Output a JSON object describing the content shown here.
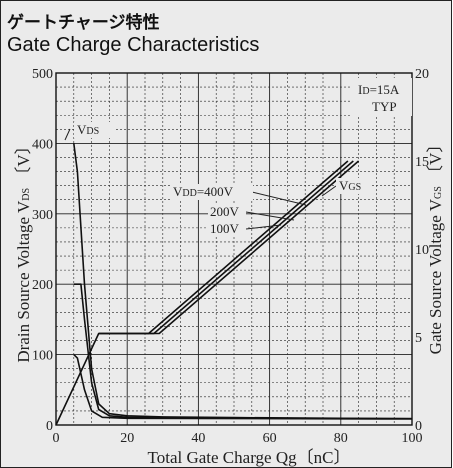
{
  "title_jp": "ゲートチャージ特性",
  "title_en": "Gate Charge Characteristics",
  "chart_data": {
    "type": "line",
    "xlabel": "Total Gate Charge  Qg〔nC〕",
    "ylabel_left": {
      "main": "Drain Source Voltage  V",
      "sub": "DS",
      "unit": " 〔V〕"
    },
    "ylabel_right": {
      "main": "Gate Source Voltage  V",
      "sub": "GS",
      "unit": " 〔V〕"
    },
    "xlim": [
      0,
      100
    ],
    "ylim_left": [
      0,
      500
    ],
    "ylim_right": [
      0,
      20
    ],
    "x_ticks": [
      "0",
      "20",
      "40",
      "60",
      "80",
      "100"
    ],
    "y_left_ticks": [
      "0",
      "100",
      "200",
      "300",
      "400",
      "500"
    ],
    "y_right_ticks": [
      "0",
      "5",
      "10",
      "15",
      "20"
    ],
    "grid": true,
    "conditions": [
      {
        "main": "I",
        "sub": "D",
        "rest": "=15A"
      },
      {
        "main": "TYP",
        "sub": "",
        "rest": ""
      }
    ],
    "annotations": {
      "vds": {
        "main": "V",
        "sub": "DS"
      },
      "vgs": {
        "main": "V",
        "sub": "GS"
      },
      "vdd400": {
        "main": "V",
        "sub": "DD",
        "rest": "=400V"
      },
      "vdd200": {
        "main": "200V",
        "sub": "",
        "rest": ""
      },
      "vdd100": {
        "main": "100V",
        "sub": "",
        "rest": ""
      }
    },
    "series": [
      {
        "name": "VDS 400V",
        "axis": "left",
        "color": "#111111",
        "points": [
          [
            5,
            400
          ],
          [
            6,
            360
          ],
          [
            8,
            200
          ],
          [
            10,
            80
          ],
          [
            12,
            30
          ],
          [
            15,
            16
          ],
          [
            20,
            13
          ],
          [
            30,
            11.5
          ],
          [
            50,
            10.5
          ],
          [
            80,
            9.5
          ],
          [
            100,
            9
          ]
        ]
      },
      {
        "name": "VDS 200V",
        "axis": "left",
        "color": "#111111",
        "points": [
          [
            5,
            200
          ],
          [
            7,
            200
          ],
          [
            8,
            150
          ],
          [
            10,
            60
          ],
          [
            12,
            22
          ],
          [
            15,
            13
          ],
          [
            20,
            11
          ],
          [
            40,
            10
          ],
          [
            100,
            9
          ]
        ]
      },
      {
        "name": "VDS 100V",
        "axis": "left",
        "color": "#111111",
        "points": [
          [
            5,
            100
          ],
          [
            6,
            95
          ],
          [
            8,
            50
          ],
          [
            10,
            20
          ],
          [
            13,
            11
          ],
          [
            20,
            9.5
          ],
          [
            100,
            8.5
          ]
        ]
      },
      {
        "name": "VGS 100V",
        "axis": "right",
        "color": "#111111",
        "points": [
          [
            0,
            0
          ],
          [
            12,
            5.2
          ],
          [
            26,
            5.2
          ],
          [
            82,
            15
          ]
        ]
      },
      {
        "name": "VGS 200V",
        "axis": "right",
        "color": "#111111",
        "points": [
          [
            12,
            5.2
          ],
          [
            27.5,
            5.2
          ],
          [
            83.5,
            15
          ]
        ]
      },
      {
        "name": "VGS 400V",
        "axis": "right",
        "color": "#111111",
        "points": [
          [
            12,
            5.2
          ],
          [
            29,
            5.2
          ],
          [
            85,
            15
          ]
        ]
      }
    ]
  }
}
